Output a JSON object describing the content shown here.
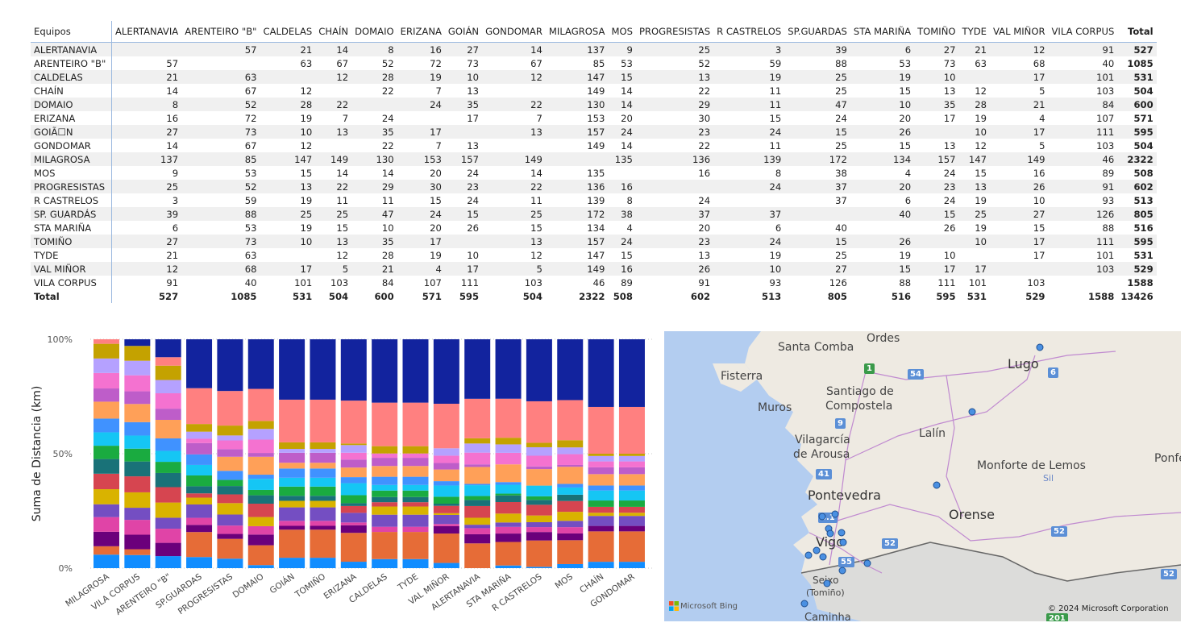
{
  "matrix": {
    "corner": "Equipos",
    "columns": [
      "ALERTANAVIA",
      "ARENTEIRO \"B\"",
      "CALDELAS",
      "CHAÍN",
      "DOMAIO",
      "ERIZANA",
      "GOIÁN",
      "GONDOMAR",
      "MILAGROSA",
      "MOS",
      "PROGRESISTAS",
      "R CASTRELOS",
      "SP.GUARDAS",
      "STA MARIÑA",
      "TOMIÑO",
      "TYDE",
      "VAL MIÑOR",
      "VILA CORPUS",
      "Total"
    ],
    "rows": [
      {
        "label": "ALERTANAVIA",
        "cells": [
          "",
          "57",
          "21",
          "14",
          "8",
          "16",
          "27",
          "14",
          "137",
          "9",
          "25",
          "3",
          "39",
          "6",
          "27",
          "21",
          "12",
          "91",
          "527"
        ]
      },
      {
        "label": "ARENTEIRO \"B\"",
        "cells": [
          "57",
          "",
          "63",
          "67",
          "52",
          "72",
          "73",
          "67",
          "85",
          "53",
          "52",
          "59",
          "88",
          "53",
          "73",
          "63",
          "68",
          "40",
          "1085"
        ]
      },
      {
        "label": "CALDELAS",
        "cells": [
          "21",
          "63",
          "",
          "12",
          "28",
          "19",
          "10",
          "12",
          "147",
          "15",
          "13",
          "19",
          "25",
          "19",
          "10",
          "",
          "17",
          "101",
          "531"
        ]
      },
      {
        "label": "CHAÍN",
        "cells": [
          "14",
          "67",
          "12",
          "",
          "22",
          "7",
          "13",
          "",
          "149",
          "14",
          "22",
          "11",
          "25",
          "15",
          "13",
          "12",
          "5",
          "103",
          "504"
        ]
      },
      {
        "label": "DOMAIO",
        "cells": [
          "8",
          "52",
          "28",
          "22",
          "",
          "24",
          "35",
          "22",
          "130",
          "14",
          "29",
          "11",
          "47",
          "10",
          "35",
          "28",
          "21",
          "84",
          "600"
        ]
      },
      {
        "label": "ERIZANA",
        "cells": [
          "16",
          "72",
          "19",
          "7",
          "24",
          "",
          "17",
          "7",
          "153",
          "20",
          "30",
          "15",
          "24",
          "20",
          "17",
          "19",
          "4",
          "107",
          "571"
        ]
      },
      {
        "label": "GOIÃ☐N",
        "cells": [
          "27",
          "73",
          "10",
          "13",
          "35",
          "17",
          "",
          "13",
          "157",
          "24",
          "23",
          "24",
          "15",
          "26",
          "",
          "10",
          "17",
          "111",
          "595"
        ]
      },
      {
        "label": "GONDOMAR",
        "cells": [
          "14",
          "67",
          "12",
          "",
          "22",
          "7",
          "13",
          "",
          "149",
          "14",
          "22",
          "11",
          "25",
          "15",
          "13",
          "12",
          "5",
          "103",
          "504"
        ]
      },
      {
        "label": "MILAGROSA",
        "cells": [
          "137",
          "85",
          "147",
          "149",
          "130",
          "153",
          "157",
          "149",
          "",
          "135",
          "136",
          "139",
          "172",
          "134",
          "157",
          "147",
          "149",
          "46",
          "2322"
        ]
      },
      {
        "label": "MOS",
        "cells": [
          "9",
          "53",
          "15",
          "14",
          "14",
          "20",
          "24",
          "14",
          "135",
          "",
          "16",
          "8",
          "38",
          "4",
          "24",
          "15",
          "16",
          "89",
          "508"
        ]
      },
      {
        "label": "PROGRESISTAS",
        "cells": [
          "25",
          "52",
          "13",
          "22",
          "29",
          "30",
          "23",
          "22",
          "136",
          "16",
          "",
          "24",
          "37",
          "20",
          "23",
          "13",
          "26",
          "91",
          "602"
        ]
      },
      {
        "label": "R CASTRELOS",
        "cells": [
          "3",
          "59",
          "19",
          "11",
          "11",
          "15",
          "24",
          "11",
          "139",
          "8",
          "24",
          "",
          "37",
          "6",
          "24",
          "19",
          "10",
          "93",
          "513"
        ]
      },
      {
        "label": "SP. GUARDÁS",
        "cells": [
          "39",
          "88",
          "25",
          "25",
          "47",
          "24",
          "15",
          "25",
          "172",
          "38",
          "37",
          "37",
          "",
          "40",
          "15",
          "25",
          "27",
          "126",
          "805"
        ]
      },
      {
        "label": "STA MARIÑA",
        "cells": [
          "6",
          "53",
          "19",
          "15",
          "10",
          "20",
          "26",
          "15",
          "134",
          "4",
          "20",
          "6",
          "40",
          "",
          "26",
          "19",
          "15",
          "88",
          "516"
        ]
      },
      {
        "label": "TOMIÑO",
        "cells": [
          "27",
          "73",
          "10",
          "13",
          "35",
          "17",
          "",
          "13",
          "157",
          "24",
          "23",
          "24",
          "15",
          "26",
          "",
          "10",
          "17",
          "111",
          "595"
        ]
      },
      {
        "label": "TYDE",
        "cells": [
          "21",
          "63",
          "",
          "12",
          "28",
          "19",
          "10",
          "12",
          "147",
          "15",
          "13",
          "19",
          "25",
          "19",
          "10",
          "",
          "17",
          "101",
          "531"
        ]
      },
      {
        "label": "VAL MIÑOR",
        "cells": [
          "12",
          "68",
          "17",
          "5",
          "21",
          "4",
          "17",
          "5",
          "149",
          "16",
          "26",
          "10",
          "27",
          "15",
          "17",
          "17",
          "",
          "103",
          "529"
        ]
      },
      {
        "label": "VILA CORPUS",
        "cells": [
          "91",
          "40",
          "101",
          "103",
          "84",
          "107",
          "111",
          "103",
          "46",
          "89",
          "91",
          "93",
          "126",
          "88",
          "111",
          "101",
          "103",
          "",
          "1588"
        ]
      }
    ],
    "total_row": {
      "label": "Total",
      "cells": [
        "527",
        "1085",
        "531",
        "504",
        "600",
        "571",
        "595",
        "504",
        "2322",
        "508",
        "602",
        "513",
        "805",
        "516",
        "595",
        "531",
        "529",
        "1588",
        "13426"
      ]
    }
  },
  "chart_data": {
    "type": "bar",
    "stacked": "100%",
    "ylabel": "Suma de Distancia (km)",
    "yticks": [
      "0%",
      "50%",
      "100%"
    ],
    "ylim": [
      0,
      100
    ],
    "categories": [
      "MILAGROSA",
      "VILA CORPUS",
      "ARENTEIRO \"B\"",
      "SP.GUARDAS",
      "PROGRESISTAS",
      "DOMAIO",
      "GOIÁN",
      "TOMIÑO",
      "ERIZANA",
      "CALDELAS",
      "TYDE",
      "VAL MIÑOR",
      "ALERTANAVIA",
      "STA MARIÑA",
      "R CASTRELOS",
      "MOS",
      "CHAÍN",
      "GONDOMAR"
    ],
    "colors": [
      "#118dff",
      "#e66c37",
      "#6b007b",
      "#e044a7",
      "#744ec2",
      "#d9b300",
      "#d64550",
      "#197278",
      "#1aab40",
      "#15c6f4",
      "#4092ff",
      "#ffa058",
      "#be5dc9",
      "#f472d0",
      "#b5a1ff",
      "#c4a200",
      "#ff8080",
      "#12239e"
    ],
    "series_values": [
      [
        137,
        85,
        147,
        149,
        130,
        153,
        157,
        149,
        135,
        136,
        139,
        172,
        134,
        157,
        147,
        149,
        46,
        0
      ],
      [
        91,
        40,
        101,
        103,
        84,
        107,
        111,
        103,
        89,
        91,
        93,
        126,
        88,
        111,
        101,
        103,
        0,
        46
      ],
      [
        57,
        0,
        63,
        67,
        52,
        72,
        73,
        67,
        53,
        52,
        59,
        88,
        53,
        73,
        63,
        68,
        40,
        85
      ],
      [
        39,
        88,
        25,
        25,
        47,
        24,
        15,
        25,
        38,
        37,
        37,
        0,
        40,
        15,
        25,
        27,
        126,
        172
      ],
      [
        25,
        52,
        13,
        22,
        29,
        30,
        23,
        22,
        16,
        0,
        24,
        37,
        20,
        23,
        13,
        26,
        91,
        136
      ],
      [
        8,
        52,
        28,
        22,
        0,
        24,
        35,
        22,
        14,
        29,
        11,
        47,
        10,
        35,
        28,
        21,
        84,
        130
      ],
      [
        27,
        73,
        10,
        13,
        35,
        17,
        0,
        13,
        24,
        23,
        24,
        15,
        26,
        0,
        10,
        17,
        111,
        157
      ],
      [
        27,
        73,
        10,
        13,
        35,
        17,
        0,
        13,
        24,
        23,
        24,
        15,
        26,
        0,
        10,
        17,
        111,
        157
      ],
      [
        16,
        72,
        19,
        7,
        24,
        0,
        17,
        7,
        20,
        30,
        15,
        24,
        20,
        17,
        19,
        4,
        107,
        153
      ],
      [
        21,
        63,
        0,
        12,
        28,
        19,
        10,
        12,
        15,
        13,
        19,
        25,
        19,
        10,
        0,
        17,
        101,
        147
      ],
      [
        21,
        63,
        0,
        12,
        28,
        19,
        10,
        12,
        15,
        13,
        19,
        25,
        19,
        10,
        0,
        17,
        101,
        147
      ],
      [
        12,
        68,
        17,
        5,
        21,
        4,
        17,
        5,
        16,
        26,
        10,
        27,
        15,
        17,
        17,
        0,
        103,
        149
      ],
      [
        0,
        57,
        21,
        14,
        8,
        16,
        27,
        14,
        9,
        25,
        3,
        39,
        6,
        27,
        21,
        12,
        91,
        137
      ],
      [
        6,
        53,
        19,
        15,
        10,
        20,
        26,
        15,
        4,
        20,
        6,
        40,
        0,
        26,
        19,
        15,
        88,
        134
      ],
      [
        3,
        59,
        19,
        11,
        11,
        15,
        24,
        11,
        8,
        24,
        0,
        37,
        6,
        24,
        19,
        10,
        93,
        139
      ],
      [
        9,
        53,
        15,
        14,
        14,
        20,
        24,
        14,
        0,
        16,
        8,
        38,
        4,
        24,
        15,
        16,
        89,
        135
      ],
      [
        14,
        67,
        12,
        0,
        22,
        7,
        13,
        0,
        14,
        22,
        11,
        25,
        15,
        13,
        12,
        5,
        103,
        149
      ],
      [
        14,
        67,
        12,
        0,
        22,
        7,
        13,
        0,
        14,
        22,
        11,
        25,
        15,
        13,
        12,
        5,
        103,
        149
      ]
    ]
  },
  "map": {
    "labels": [
      "Santa Comba",
      "Ordes",
      "Fisterra",
      "Lugo",
      "Muros",
      "Santiago de",
      "Compostela",
      "Lalín",
      "Vilagarcía",
      "de Arousa",
      "Monforte de Lemos",
      "Ponfe",
      "Pontevedra",
      "Orense",
      "Vigo",
      "Sil",
      "Seixo",
      "(Tomiño)",
      "Caminha"
    ],
    "roads": [
      "1",
      "54",
      "6",
      "9",
      "41",
      "4.1",
      "55",
      "52",
      "52",
      "52",
      "201"
    ],
    "brand": "Microsoft Bing",
    "copyright": "© 2024 Microsoft Corporation",
    "colors": {
      "sea": "#b3cdf0",
      "land": "#eeeae2",
      "portugal": "#dcdcda",
      "road": "#c08ad0",
      "marker": "#4a90e2"
    }
  }
}
